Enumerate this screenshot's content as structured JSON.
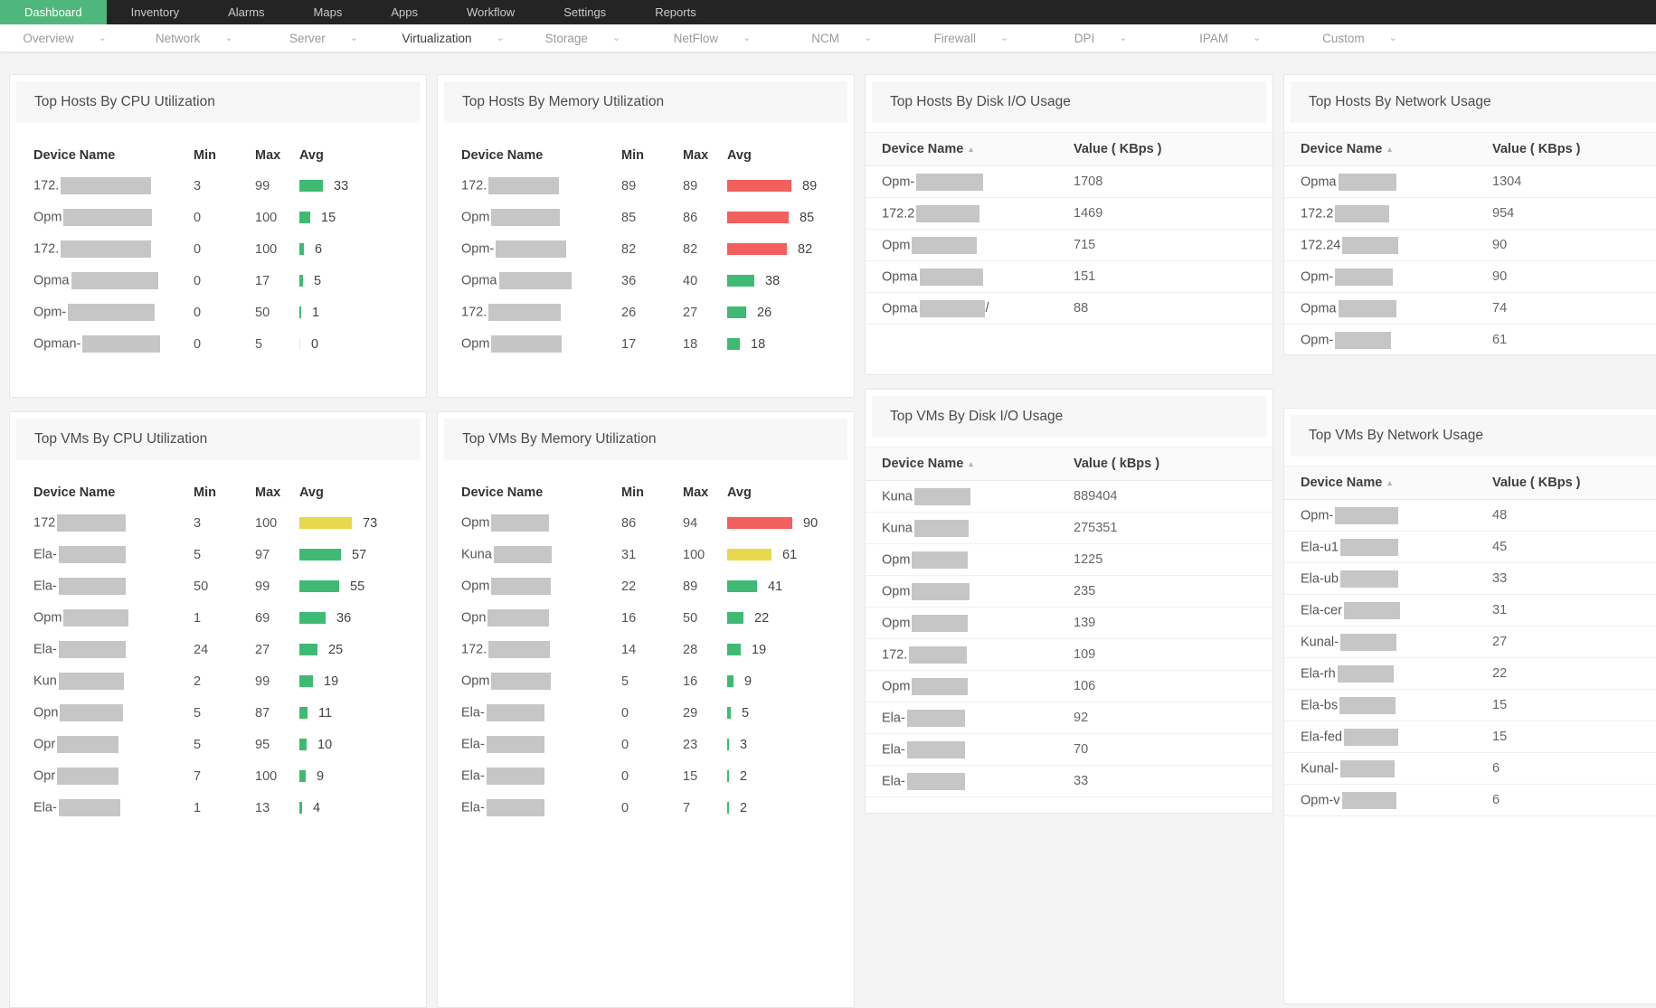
{
  "top_nav": {
    "items": [
      {
        "label": "Dashboard",
        "active": true
      },
      {
        "label": "Inventory"
      },
      {
        "label": "Alarms"
      },
      {
        "label": "Maps"
      },
      {
        "label": "Apps"
      },
      {
        "label": "Workflow"
      },
      {
        "label": "Settings"
      },
      {
        "label": "Reports"
      }
    ]
  },
  "subnav": {
    "items": [
      {
        "label": "Overview"
      },
      {
        "label": "Network"
      },
      {
        "label": "Server"
      },
      {
        "label": "Virtualization",
        "active": true
      },
      {
        "label": "Storage"
      },
      {
        "label": "NetFlow"
      },
      {
        "label": "NCM"
      },
      {
        "label": "Firewall"
      },
      {
        "label": "DPI"
      },
      {
        "label": "IPAM"
      },
      {
        "label": "Custom"
      }
    ]
  },
  "icons": {
    "chevron_down": "⌄",
    "sort_asc": "▴"
  },
  "colors": {
    "accent_green": "#4fb77c",
    "bar_green": "#3fba75",
    "bar_yellow": "#e8d84e",
    "bar_red": "#f15f5f",
    "bar_zero": "#e9e9e9",
    "redaction": "#c6c6c6"
  },
  "bar_thresholds": {
    "red_min": 80,
    "yellow_min": 60
  },
  "widgets": [
    {
      "id": "hosts-cpu",
      "title": "Top Hosts By CPU Utilization",
      "type": "minmaxavg",
      "columns": [
        "Device Name",
        "Min",
        "Max",
        "Avg"
      ],
      "rows": [
        {
          "device_prefix": "172.",
          "redact_w": 100,
          "min": 3,
          "max": 99,
          "avg": 33
        },
        {
          "device_prefix": "Opm",
          "redact_w": 98,
          "min": 0,
          "max": 100,
          "avg": 15
        },
        {
          "device_prefix": "172.",
          "redact_w": 100,
          "min": 0,
          "max": 100,
          "avg": 6
        },
        {
          "device_prefix": "Opma",
          "redact_w": 96,
          "min": 0,
          "max": 17,
          "avg": 5
        },
        {
          "device_prefix": "Opm-",
          "redact_w": 96,
          "min": 0,
          "max": 50,
          "avg": 1
        },
        {
          "device_prefix": "Opman-",
          "redact_w": 86,
          "min": 0,
          "max": 5,
          "avg": 0
        }
      ]
    },
    {
      "id": "hosts-mem",
      "title": "Top Hosts By Memory Utilization",
      "type": "minmaxavg",
      "columns": [
        "Device Name",
        "Min",
        "Max",
        "Avg"
      ],
      "rows": [
        {
          "device_prefix": "172.",
          "redact_w": 78,
          "min": 89,
          "max": 89,
          "avg": 89
        },
        {
          "device_prefix": "Opm",
          "redact_w": 76,
          "min": 85,
          "max": 86,
          "avg": 85
        },
        {
          "device_prefix": "Opm-",
          "redact_w": 78,
          "min": 82,
          "max": 82,
          "avg": 82
        },
        {
          "device_prefix": "Opma",
          "redact_w": 80,
          "min": 36,
          "max": 40,
          "avg": 38
        },
        {
          "device_prefix": "172.",
          "redact_w": 80,
          "min": 26,
          "max": 27,
          "avg": 26
        },
        {
          "device_prefix": "Opm",
          "redact_w": 78,
          "min": 17,
          "max": 18,
          "avg": 18
        }
      ]
    },
    {
      "id": "hosts-disk",
      "title": "Top Hosts By Disk I/O Usage",
      "type": "namevalue",
      "columns": [
        "Device Name",
        "Value ( KBps )"
      ],
      "rows": [
        {
          "device_prefix": "Opm-",
          "redact_w": 74,
          "value": "1708"
        },
        {
          "device_prefix": "172.2",
          "redact_w": 70,
          "value": "1469"
        },
        {
          "device_prefix": "Opm",
          "redact_w": 72,
          "value": "715"
        },
        {
          "device_prefix": "Opma",
          "redact_w": 70,
          "value": "151"
        },
        {
          "device_prefix": "Opma",
          "redact_w": 72,
          "suffix": "/",
          "value": "88"
        }
      ]
    },
    {
      "id": "hosts-net",
      "title": "Top Hosts By Network Usage",
      "type": "namevalue",
      "columns": [
        "Device Name",
        "Value ( KBps )"
      ],
      "rows": [
        {
          "device_prefix": "Opma",
          "redact_w": 64,
          "value": "1304"
        },
        {
          "device_prefix": "172.2",
          "redact_w": 60,
          "value": "954"
        },
        {
          "device_prefix": "172.24",
          "redact_w": 62,
          "value": "90"
        },
        {
          "device_prefix": "Opm-",
          "redact_w": 64,
          "value": "90"
        },
        {
          "device_prefix": "Opma",
          "redact_w": 64,
          "value": "74"
        },
        {
          "device_prefix": "Opm-",
          "redact_w": 62,
          "value": "61"
        }
      ]
    },
    {
      "id": "vms-cpu",
      "title": "Top VMs By CPU Utilization",
      "type": "minmaxavg",
      "columns": [
        "Device Name",
        "Min",
        "Max",
        "Avg"
      ],
      "rows": [
        {
          "device_prefix": "172",
          "redact_w": 76,
          "min": 3,
          "max": 100,
          "avg": 73
        },
        {
          "device_prefix": "Ela-",
          "redact_w": 74,
          "min": 5,
          "max": 97,
          "avg": 57
        },
        {
          "device_prefix": "Ela-",
          "redact_w": 74,
          "min": 50,
          "max": 99,
          "avg": 55
        },
        {
          "device_prefix": "Opm",
          "redact_w": 72,
          "min": 1,
          "max": 69,
          "avg": 36
        },
        {
          "device_prefix": "Ela-",
          "redact_w": 74,
          "min": 24,
          "max": 27,
          "avg": 25
        },
        {
          "device_prefix": "Kun",
          "redact_w": 72,
          "min": 2,
          "max": 99,
          "avg": 19
        },
        {
          "device_prefix": "Opn",
          "redact_w": 70,
          "min": 5,
          "max": 87,
          "avg": 11
        },
        {
          "device_prefix": "Opr",
          "redact_w": 68,
          "min": 5,
          "max": 95,
          "avg": 10
        },
        {
          "device_prefix": "Opr",
          "redact_w": 68,
          "min": 7,
          "max": 100,
          "avg": 9
        },
        {
          "device_prefix": "Ela-",
          "redact_w": 68,
          "min": 1,
          "max": 13,
          "avg": 4
        }
      ]
    },
    {
      "id": "vms-mem",
      "title": "Top VMs By Memory Utilization",
      "type": "minmaxavg",
      "columns": [
        "Device Name",
        "Min",
        "Max",
        "Avg"
      ],
      "rows": [
        {
          "device_prefix": "Opm",
          "redact_w": 64,
          "min": 86,
          "max": 94,
          "avg": 90
        },
        {
          "device_prefix": "Kuna",
          "redact_w": 64,
          "min": 31,
          "max": 100,
          "avg": 61
        },
        {
          "device_prefix": "Opm",
          "redact_w": 66,
          "min": 22,
          "max": 89,
          "avg": 41
        },
        {
          "device_prefix": "Opn",
          "redact_w": 68,
          "min": 16,
          "max": 50,
          "avg": 22
        },
        {
          "device_prefix": "172.",
          "redact_w": 68,
          "min": 14,
          "max": 28,
          "avg": 19
        },
        {
          "device_prefix": "Opm",
          "redact_w": 66,
          "min": 5,
          "max": 16,
          "avg": 9
        },
        {
          "device_prefix": "Ela-",
          "redact_w": 64,
          "min": 0,
          "max": 29,
          "avg": 5
        },
        {
          "device_prefix": "Ela-",
          "redact_w": 64,
          "min": 0,
          "max": 23,
          "avg": 3
        },
        {
          "device_prefix": "Ela-",
          "redact_w": 64,
          "min": 0,
          "max": 15,
          "avg": 2
        },
        {
          "device_prefix": "Ela-",
          "redact_w": 64,
          "min": 0,
          "max": 7,
          "avg": 2
        }
      ]
    },
    {
      "id": "vms-disk",
      "title": "Top VMs By Disk I/O Usage",
      "type": "namevalue",
      "columns": [
        "Device Name",
        "Value ( kBps )"
      ],
      "rows": [
        {
          "device_prefix": "Kuna",
          "redact_w": 62,
          "value": "889404"
        },
        {
          "device_prefix": "Kuna",
          "redact_w": 60,
          "value": "275351"
        },
        {
          "device_prefix": "Opm",
          "redact_w": 62,
          "value": "1225"
        },
        {
          "device_prefix": "Opm",
          "redact_w": 64,
          "value": "235"
        },
        {
          "device_prefix": "Opm",
          "redact_w": 62,
          "value": "139"
        },
        {
          "device_prefix": "172.",
          "redact_w": 64,
          "value": "109"
        },
        {
          "device_prefix": "Opm",
          "redact_w": 62,
          "value": "106"
        },
        {
          "device_prefix": "Ela-",
          "redact_w": 64,
          "value": "92"
        },
        {
          "device_prefix": "Ela-",
          "redact_w": 64,
          "value": "70"
        },
        {
          "device_prefix": "Ela-",
          "redact_w": 64,
          "value": "33"
        }
      ]
    },
    {
      "id": "vms-net",
      "title": "Top VMs By Network Usage",
      "type": "namevalue",
      "columns": [
        "Device Name",
        "Value ( KBps )"
      ],
      "rows": [
        {
          "device_prefix": "Opm-",
          "redact_w": 70,
          "value": "48"
        },
        {
          "device_prefix": "Ela-u1",
          "redact_w": 64,
          "value": "45"
        },
        {
          "device_prefix": "Ela-ub",
          "redact_w": 64,
          "value": "33"
        },
        {
          "device_prefix": "Ela-cer",
          "redact_w": 62,
          "value": "31"
        },
        {
          "device_prefix": "Kunal-",
          "redact_w": 62,
          "value": "27"
        },
        {
          "device_prefix": "Ela-rh",
          "redact_w": 62,
          "value": "22"
        },
        {
          "device_prefix": "Ela-bs",
          "redact_w": 62,
          "value": "15"
        },
        {
          "device_prefix": "Ela-fed",
          "redact_w": 60,
          "value": "15"
        },
        {
          "device_prefix": "Kunal-",
          "redact_w": 60,
          "value": "6"
        },
        {
          "device_prefix": "Opm-v",
          "redact_w": 60,
          "value": "6"
        }
      ]
    }
  ]
}
